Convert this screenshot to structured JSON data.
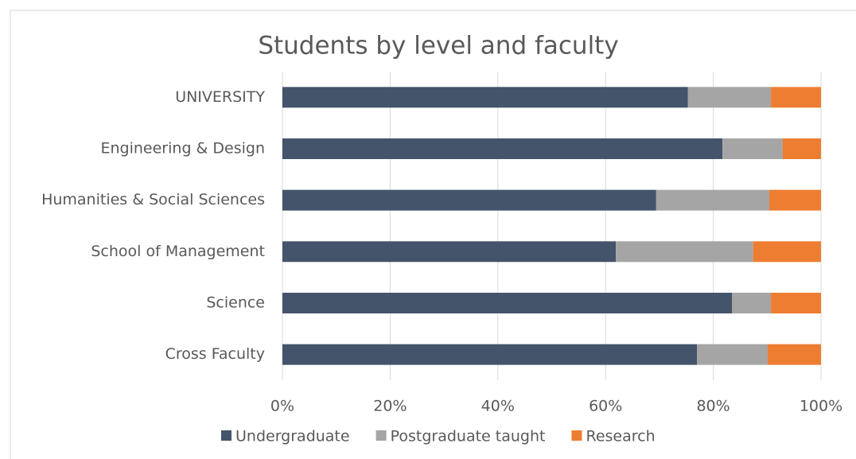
{
  "chart_data": {
    "type": "bar",
    "orientation": "horizontal",
    "stacked": true,
    "title": "Students by level and faculty",
    "categories": [
      "UNIVERSITY",
      "Engineering & Design",
      "Humanities & Social Sciences",
      "School of Management",
      "Science",
      "Cross Faculty"
    ],
    "series": [
      {
        "name": "Undergraduate",
        "color": "#44546a",
        "values": [
          75.3,
          81.7,
          69.4,
          61.9,
          83.5,
          77.0
        ]
      },
      {
        "name": "Postgraduate taught",
        "color": "#a5a5a5",
        "values": [
          15.4,
          11.2,
          21.0,
          25.5,
          7.2,
          13.1
        ]
      },
      {
        "name": "Research",
        "color": "#ed7d31",
        "values": [
          9.3,
          7.1,
          9.6,
          12.6,
          9.3,
          9.9
        ]
      }
    ],
    "xlim": [
      0,
      100
    ],
    "xticks": [
      {
        "value": 0,
        "label": "0%"
      },
      {
        "value": 20,
        "label": "20%"
      },
      {
        "value": 40,
        "label": "40%"
      },
      {
        "value": 60,
        "label": "60%"
      },
      {
        "value": 80,
        "label": "80%"
      },
      {
        "value": 100,
        "label": "100%"
      }
    ],
    "grid": true,
    "legend": "bottom"
  }
}
